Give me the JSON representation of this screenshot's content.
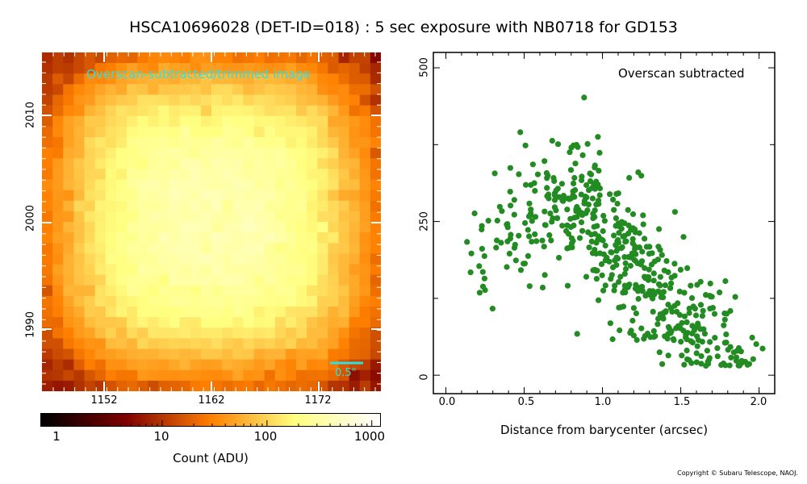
{
  "title": "HSCA10696028 (DET-ID=018) :  5 sec exposure with NB0718 for GD153",
  "copyright": "Copyright © Subaru Telescope, NAOJ.",
  "chart_data": [
    {
      "type": "heatmap",
      "annotation": "Overscan-subtracted/trimmed image",
      "scale_bar_label": "0.5\"",
      "x_tick_labels": [
        "1152",
        "1162",
        "1172"
      ],
      "y_tick_labels": [
        "1990",
        "2000",
        "2010"
      ],
      "colorbar": {
        "label": "Count (ADU)",
        "scale": "log",
        "range": [
          0.7,
          1200
        ],
        "tick_labels": [
          "1",
          "10",
          "100",
          "1000"
        ],
        "colormap": "afmhot"
      }
    },
    {
      "type": "scatter",
      "annotation": "Overscan subtracted",
      "xlabel": "Distance from barycenter (arcsec)",
      "ylabel": "",
      "xlim": [
        -0.08,
        2.1
      ],
      "ylim": [
        -30,
        525
      ],
      "x_tick_labels": [
        "0.0",
        "0.5",
        "1.0",
        "1.5",
        "2.0"
      ],
      "y_tick_labels": [
        "0",
        "250",
        "500"
      ],
      "grid": false,
      "point_color": "#228b22",
      "profile": {
        "peak_x": 0.82,
        "peak_y": 285,
        "value_at_zero": 150,
        "value_at_2": 30,
        "scatter": 75,
        "n_points": 520
      }
    }
  ]
}
